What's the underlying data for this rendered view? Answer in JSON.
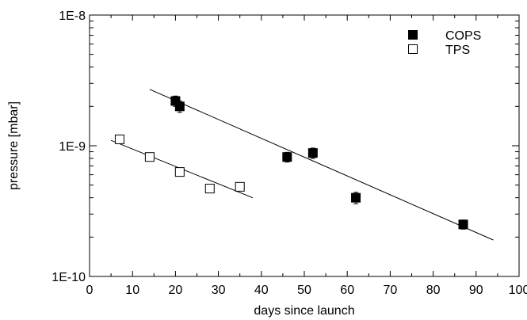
{
  "chart_data": {
    "type": "scatter",
    "title": "",
    "xlabel": "days since launch",
    "ylabel": "pressure [mbar]",
    "xlim": [
      0,
      100
    ],
    "ylim": [
      1e-10,
      1e-08
    ],
    "yscale": "log",
    "grid": false,
    "legend_position": "top-right",
    "x_ticks": [
      {
        "value": 0,
        "label": "0"
      },
      {
        "value": 10,
        "label": "10"
      },
      {
        "value": 20,
        "label": "20"
      },
      {
        "value": 30,
        "label": "30"
      },
      {
        "value": 40,
        "label": "40"
      },
      {
        "value": 50,
        "label": "50"
      },
      {
        "value": 60,
        "label": "60"
      },
      {
        "value": 70,
        "label": "70"
      },
      {
        "value": 80,
        "label": "80"
      },
      {
        "value": 90,
        "label": "90"
      },
      {
        "value": 100,
        "label": "100"
      }
    ],
    "y_ticks": [
      {
        "value": 1e-10,
        "label": "1E-10"
      },
      {
        "value": 1e-09,
        "label": "1E-9"
      },
      {
        "value": 1e-08,
        "label": "1E-8"
      }
    ],
    "series": [
      {
        "name": "COPS",
        "marker": "filled-square",
        "color": "#000000",
        "points": [
          {
            "x": 20,
            "y": 2.2e-09,
            "err": 2e-10
          },
          {
            "x": 21,
            "y": 2e-09,
            "err": 2e-10
          },
          {
            "x": 46,
            "y": 8.2e-10,
            "err": 7e-11
          },
          {
            "x": 52,
            "y": 8.8e-10,
            "err": 8e-11
          },
          {
            "x": 62,
            "y": 4e-10,
            "err": 4e-11
          },
          {
            "x": 87,
            "y": 2.5e-10,
            "err": 2e-11
          }
        ],
        "fit": {
          "x": [
            14,
            94
          ],
          "y": [
            2.7e-09,
            1.9e-10
          ]
        }
      },
      {
        "name": "TPS",
        "marker": "open-square",
        "color": "#000000",
        "points": [
          {
            "x": 7,
            "y": 1.12e-09
          },
          {
            "x": 14,
            "y": 8.2e-10
          },
          {
            "x": 21,
            "y": 6.3e-10
          },
          {
            "x": 28,
            "y": 4.7e-10
          },
          {
            "x": 35,
            "y": 4.85e-10
          }
        ],
        "fit": {
          "x": [
            5,
            38
          ],
          "y": [
            1.1e-09,
            4e-10
          ]
        }
      }
    ]
  }
}
